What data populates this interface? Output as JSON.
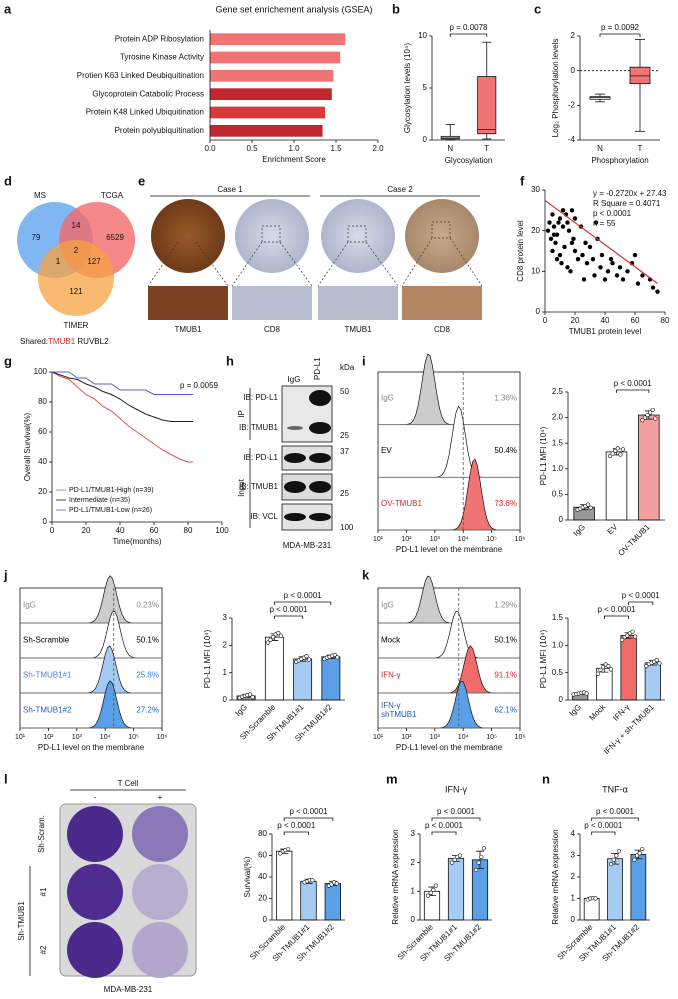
{
  "panel_letters": [
    "a",
    "b",
    "c",
    "d",
    "e",
    "f",
    "g",
    "h",
    "i",
    "j",
    "k",
    "l",
    "m",
    "n"
  ],
  "chart_data": [
    {
      "type": "bar",
      "horizontal": true,
      "title": "Gene set enrichement analysis (GSEA)",
      "categories": [
        "Protein ADP Ribosylation",
        "Tyrosine Kinase Activity",
        "Protien K63 Linked Deubiquitination",
        "Glycoprotein Catabolic Process",
        "Protein K48 Linked Ubiquitination",
        "Protein polyubiquitination"
      ],
      "values": [
        1.61,
        1.55,
        1.47,
        1.45,
        1.37,
        1.34
      ],
      "colors": [
        "#f07474",
        "#f07474",
        "#f07474",
        "#c1272d",
        "#d83a3a",
        "#c1272d"
      ],
      "xlim": [
        0,
        2
      ],
      "xticks": [
        {
          "value": 0,
          "label": "0.0"
        },
        0.5,
        {
          "value": 1,
          "label": "1.0"
        },
        1.5,
        {
          "value": 2,
          "label": "2.0"
        }
      ],
      "xlabel": "Enrichment Score"
    },
    {
      "type": "box",
      "categories": [
        "N",
        "T"
      ],
      "boxes": [
        {
          "min": 0,
          "q1": 0.1,
          "median": 0.2,
          "q3": 0.35,
          "max": 1.5
        },
        {
          "min": 0.1,
          "q1": 0.6,
          "median": 1.0,
          "q3": 6.1,
          "max": 9.4
        }
      ],
      "colors": [
        "#ffffff",
        "#f07474"
      ],
      "ylim": [
        0,
        10
      ],
      "yticks": [
        0,
        5,
        10
      ],
      "ylabel": "Glycosylation levels (10⁴)",
      "xlabel": "Glycosylation",
      "comparisons": [
        {
          "between": [
            "N",
            "T"
          ],
          "label": "p = 0.0078"
        }
      ]
    },
    {
      "type": "box",
      "categories": [
        "N",
        "T"
      ],
      "boxes": [
        {
          "min": -1.8,
          "q1": -1.65,
          "median": -1.55,
          "q3": -1.5,
          "max": -1.35
        },
        {
          "min": -3.5,
          "q1": -0.75,
          "median": -0.3,
          "q3": 0.2,
          "max": 1.8
        }
      ],
      "colors": [
        "#ffffff",
        "#f07474"
      ],
      "ylim": [
        -4,
        2
      ],
      "yticks": [
        -4,
        -2,
        0,
        2
      ],
      "hline": 0,
      "ylabel": "Log₂ Phosphorylation levels",
      "xlabel": "Phosphorylation",
      "comparisons": [
        {
          "between": [
            "N",
            "T"
          ],
          "label": "p = 0.0092"
        }
      ]
    },
    {
      "type": "scatter",
      "x": [
        2,
        3,
        4,
        5,
        5,
        6,
        7,
        8,
        8,
        9,
        10,
        10,
        11,
        12,
        13,
        14,
        15,
        15,
        16,
        17,
        18,
        19,
        20,
        20,
        22,
        24,
        25,
        27,
        28,
        30,
        32,
        33,
        35,
        37,
        38,
        40,
        42,
        44,
        45,
        48,
        50,
        52,
        55,
        58,
        60,
        62,
        65,
        70,
        72,
        75,
        6,
        12,
        18,
        26,
        34
      ],
      "values": [
        20,
        22,
        18,
        15,
        24,
        21,
        17,
        19,
        13,
        22,
        14,
        23,
        12,
        21,
        16,
        24,
        22,
        11,
        20,
        10,
        25,
        18,
        23,
        15,
        13,
        21,
        14,
        17,
        12,
        16,
        13,
        9,
        18,
        11,
        14,
        8,
        10,
        13,
        12,
        9,
        11,
        8,
        10,
        12,
        14,
        7,
        9,
        8,
        6,
        5,
        19,
        25,
        17,
        8,
        22
      ],
      "color": "#000000",
      "fit": {
        "x": [
          0,
          75
        ],
        "y": [
          27.43,
          7.03
        ],
        "color": "#e02b2b"
      },
      "annotations": [
        "y = -0.2720x + 27.43",
        "R Square = 0.4071",
        "p < 0.0001",
        "n = 55"
      ],
      "xlim": [
        0,
        80
      ],
      "xticks": [
        0,
        20,
        40,
        60,
        80
      ],
      "ylim": [
        0,
        30
      ],
      "yticks": [
        0,
        10,
        20,
        30
      ],
      "xlabel": "TMUB1 protein level",
      "ylabel": "CD8 protein level"
    },
    {
      "type": "line",
      "series": [
        {
          "name": "PD-L1/TMUB1-High (n=39)",
          "color": "#e8534f",
          "x": [
            0,
            5,
            10,
            15,
            20,
            25,
            30,
            35,
            40,
            45,
            50,
            55,
            60,
            65,
            70,
            75,
            80,
            83
          ],
          "values": [
            100,
            97,
            95,
            90,
            85,
            82,
            77,
            74,
            69,
            64,
            60,
            56,
            52,
            48,
            45,
            42,
            40,
            40
          ]
        },
        {
          "name": "Intermediate (n=35)",
          "color": "#222222",
          "x": [
            0,
            5,
            10,
            15,
            20,
            25,
            30,
            35,
            40,
            45,
            50,
            55,
            60,
            65,
            70,
            75,
            80,
            83
          ],
          "values": [
            100,
            98,
            96,
            95,
            92,
            90,
            87,
            85,
            82,
            78,
            75,
            72,
            70,
            68,
            67,
            67,
            67,
            67
          ]
        },
        {
          "name": "PD-L1/TMUB1-Low (n=26)",
          "color": "#5b5bd6",
          "x": [
            0,
            5,
            10,
            15,
            20,
            25,
            30,
            35,
            40,
            45,
            50,
            55,
            60,
            65,
            70,
            75,
            80,
            83
          ],
          "values": [
            100,
            100,
            100,
            96,
            96,
            92,
            92,
            92,
            88,
            88,
            88,
            88,
            85,
            85,
            85,
            85,
            85,
            85
          ]
        }
      ],
      "annotations": [
        "p = 0.0059"
      ],
      "xlim": [
        0,
        100
      ],
      "xticks": [
        0,
        20,
        40,
        60,
        80,
        100
      ],
      "ylim": [
        0,
        100
      ],
      "yticks": [
        0,
        20,
        40,
        60,
        80,
        100
      ],
      "xlabel": "Time(months)",
      "ylabel": "Overall Survival(%)"
    },
    {
      "type": "bar",
      "categories": [
        "IgG",
        "EV",
        "OV-TMUB1"
      ],
      "values": [
        0.25,
        1.33,
        2.05
      ],
      "errors": [
        0.05,
        0.06,
        0.08
      ],
      "points": [
        [
          0.2,
          0.22,
          0.25,
          0.27,
          0.3,
          0.24
        ],
        [
          1.25,
          1.3,
          1.35,
          1.4,
          1.28,
          1.38
        ],
        [
          1.95,
          2.0,
          2.05,
          2.1,
          2.15,
          1.98
        ]
      ],
      "colors": [
        "#999999",
        "#ffffff",
        "#f4a0a0"
      ],
      "ylim": [
        0,
        2.5
      ],
      "yticks": [
        0,
        0.5,
        {
          "value": 1,
          "label": "1.0"
        },
        1.5,
        {
          "value": 2,
          "label": "2.0"
        },
        2.5
      ],
      "ylabel": "PD-L1 MFI (10⁴)",
      "comparisons": [
        {
          "between": [
            "EV",
            "OV-TMUB1"
          ],
          "label": "p < 0.0001"
        }
      ]
    },
    {
      "type": "bar",
      "categories": [
        "IgG",
        "Sh-Scramble",
        "Sh-TMUB1#1",
        "Sh-TMUB1#2"
      ],
      "values": [
        0.15,
        2.3,
        1.5,
        1.58
      ],
      "errors": [
        0.05,
        0.12,
        0.08,
        0.06
      ],
      "points": [
        [
          0.08,
          0.12,
          0.15,
          0.18,
          0.2,
          0.1
        ],
        [
          2.1,
          2.2,
          2.3,
          2.4,
          2.45,
          2.35
        ],
        [
          1.4,
          1.45,
          1.5,
          1.55,
          1.6,
          1.48
        ],
        [
          1.5,
          1.55,
          1.58,
          1.62,
          1.65,
          1.56
        ]
      ],
      "colors": [
        "#999999",
        "#ffffff",
        "#a6cbf2",
        "#5aa0e8"
      ],
      "ylim": [
        0,
        3
      ],
      "yticks": [
        0,
        1,
        2,
        3
      ],
      "ylabel": "PD-L1 MFI (10⁴)",
      "comparisons": [
        {
          "between": [
            "Sh-Scramble",
            "Sh-TMUB1#1"
          ],
          "label": "p < 0.0001"
        },
        {
          "between": [
            "Sh-Scramble",
            "Sh-TMUB1#2"
          ],
          "label": "p < 0.0001"
        }
      ]
    },
    {
      "type": "bar",
      "categories": [
        "IgG",
        "Mock",
        "IFN-γ",
        "IFN-γ + sh-TMUB1"
      ],
      "values": [
        0.12,
        0.58,
        1.18,
        0.68
      ],
      "errors": [
        0.02,
        0.07,
        0.05,
        0.04
      ],
      "points": [
        [
          0.1,
          0.11,
          0.12,
          0.13,
          0.14,
          0.12
        ],
        [
          0.48,
          0.55,
          0.6,
          0.65,
          0.62,
          0.56
        ],
        [
          1.1,
          1.15,
          1.18,
          1.22,
          1.25,
          1.16
        ],
        [
          0.62,
          0.66,
          0.68,
          0.7,
          0.73,
          0.67
        ]
      ],
      "colors": [
        "#999999",
        "#ffffff",
        "#f26b6b",
        "#a6cbf2"
      ],
      "ylim": [
        0,
        1.5
      ],
      "yticks": [
        0,
        0.5,
        {
          "value": 1,
          "label": "1.0"
        },
        1.5
      ],
      "ylabel": "PD-L1 MFI (10⁴)",
      "comparisons": [
        {
          "between": [
            "Mock",
            "IFN-γ"
          ],
          "label": "p < 0.0001"
        },
        {
          "between": [
            "IFN-γ",
            "IFN-γ + sh-TMUB1"
          ],
          "label": "p < 0.0001"
        }
      ]
    },
    {
      "type": "bar",
      "categories": [
        "Sh-Scramble",
        "Sh-TMUB1#1",
        "Sh-TMUB1#2"
      ],
      "values": [
        64,
        36,
        34
      ],
      "errors": [
        2,
        2,
        2
      ],
      "points": [
        [
          62,
          64,
          65,
          66
        ],
        [
          35,
          36,
          37,
          37
        ],
        [
          32,
          33,
          35,
          34
        ]
      ],
      "colors": [
        "#ffffff",
        "#a6cbf2",
        "#5aa0e8"
      ],
      "ylim": [
        0,
        80
      ],
      "yticks": [
        0,
        20,
        40,
        60,
        80
      ],
      "ylabel": "Survival(%)",
      "comparisons": [
        {
          "between": [
            "Sh-Scramble",
            "Sh-TMUB1#1"
          ],
          "label": "p < 0.0001"
        },
        {
          "between": [
            "Sh-Scramble",
            "Sh-TMUB1#2"
          ],
          "label": "p < 0.0001"
        }
      ]
    },
    {
      "type": "bar",
      "title": "IFN-γ",
      "categories": [
        "Sh-Scramble",
        "Sh-TMUB1#1",
        "Sh-TMUB1#2"
      ],
      "values": [
        1.0,
        2.15,
        2.1
      ],
      "errors": [
        0.15,
        0.1,
        0.3
      ],
      "points": [
        [
          0.85,
          0.95,
          1.05,
          1.2
        ],
        [
          2.0,
          2.1,
          2.2,
          2.25
        ],
        [
          1.75,
          2.0,
          2.2,
          2.5
        ]
      ],
      "colors": [
        "#ffffff",
        "#a6cbf2",
        "#5aa0e8"
      ],
      "ylim": [
        0,
        3
      ],
      "yticks": [
        0,
        1,
        2,
        3
      ],
      "ylabel": "Relative mRNA expression",
      "comparisons": [
        {
          "between": [
            "Sh-Scramble",
            "Sh-TMUB1#1"
          ],
          "label": "p < 0.0001"
        },
        {
          "between": [
            "Sh-Scramble",
            "Sh-TMUB1#2"
          ],
          "label": "p < 0.0001"
        }
      ]
    },
    {
      "type": "bar",
      "title": "TNF-α",
      "categories": [
        "Sh-Scramble",
        "Sh-TMUB1#1",
        "Sh-TMUB1#2"
      ],
      "values": [
        1.0,
        2.85,
        3.05
      ],
      "errors": [
        0.05,
        0.25,
        0.2
      ],
      "points": [
        [
          0.95,
          1.0,
          1.02,
          1.0
        ],
        [
          2.6,
          2.8,
          3.0,
          3.2
        ],
        [
          2.8,
          3.0,
          3.1,
          3.3
        ]
      ],
      "colors": [
        "#ffffff",
        "#a6cbf2",
        "#5aa0e8"
      ],
      "ylim": [
        0,
        4
      ],
      "yticks": [
        0,
        1,
        2,
        3,
        4
      ],
      "ylabel": "Relative mRNA expression",
      "comparisons": [
        {
          "between": [
            "Sh-Scramble",
            "Sh-TMUB1#1"
          ],
          "label": "p < 0.0001"
        },
        {
          "between": [
            "Sh-Scramble",
            "Sh-TMUB1#2"
          ],
          "label": "p < 0.0001"
        }
      ]
    }
  ],
  "flow": [
    {
      "samples": [
        {
          "name": "IgG",
          "pct": "1.36%",
          "color": "#cccccc",
          "label_color": "#888888",
          "peak": 600
        },
        {
          "name": "EV",
          "pct": "50.4%",
          "color": "#ffffff",
          "label_color": "#000000",
          "peak": 7000
        },
        {
          "name": "OV-TMUB1",
          "pct": "73.6%",
          "color": "#f07474",
          "label_color": "#d62828",
          "peak": 25000
        }
      ],
      "gate": 10000,
      "xticks": [
        {
          "value": 10,
          "label": "10¹"
        },
        {
          "value": 100,
          "label": "10²"
        },
        {
          "value": 1000,
          "label": "10³"
        },
        {
          "value": 10000,
          "label": "10⁴"
        },
        {
          "value": 100000,
          "label": "10⁵"
        },
        {
          "value": 1000000,
          "label": "10⁶"
        }
      ],
      "xlabel": "PD-L1 level on the membrane"
    },
    {
      "samples": [
        {
          "name": "IgG",
          "pct": "0.23%",
          "color": "#cccccc",
          "label_color": "#888888",
          "peak": 15000
        },
        {
          "name": "Sh-Scramble",
          "pct": "50.1%",
          "color": "#ffffff",
          "label_color": "#000000",
          "peak": 20000
        },
        {
          "name": "Sh-TMUB1#1",
          "pct": "25.8%",
          "color": "#a6cbf2",
          "label_color": "#3f86d8",
          "peak": 14000
        },
        {
          "name": "Sh-TMUB1#2",
          "pct": "27.2%",
          "color": "#5aa0e8",
          "label_color": "#1f5fae",
          "peak": 15000
        }
      ],
      "gate": 20000,
      "xticks": [
        {
          "value": 10,
          "label": "10¹"
        },
        {
          "value": 100,
          "label": "10²"
        },
        {
          "value": 1000,
          "label": "10³"
        },
        {
          "value": 10000,
          "label": "10⁴"
        },
        {
          "value": 100000,
          "label": "10⁵"
        },
        {
          "value": 1000000,
          "label": "10⁶"
        }
      ],
      "xlabel": "PD-L1 level on the membrane"
    },
    {
      "samples": [
        {
          "name": "IgG",
          "pct": "1.29%",
          "color": "#cccccc",
          "label_color": "#888888",
          "peak": 600
        },
        {
          "name": "Mock",
          "pct": "50.1%",
          "color": "#ffffff",
          "label_color": "#000000",
          "peak": 6000
        },
        {
          "name": "IFN-γ",
          "pct": "91.1%",
          "color": "#f26b6b",
          "label_color": "#d62828",
          "peak": 18000
        },
        {
          "name": [
            "IFN-γ",
            "shTMUB1"
          ],
          "pct": "62.1%",
          "color": "#5aa0e8",
          "label_color": "#1f5fae",
          "peak": 9000
        }
      ],
      "gate": 7000,
      "xticks": [
        {
          "value": 10,
          "label": "10¹"
        },
        {
          "value": 100,
          "label": "10²"
        },
        {
          "value": 1000,
          "label": "10³"
        },
        {
          "value": 10000,
          "label": "10⁴"
        },
        {
          "value": 100000,
          "label": "10⁵"
        },
        {
          "value": 1000000,
          "label": "10⁶"
        }
      ],
      "xlabel": "PD-L1 level on the membrane"
    }
  ],
  "venn": {
    "sets": [
      "MS",
      "TCGA",
      "TIMER"
    ],
    "counts": [
      79,
      14,
      6529,
      1,
      2,
      127,
      121
    ],
    "shared_label": "Shared:",
    "shared_genes": [
      "TMUB1",
      "RUVBL2"
    ]
  },
  "ihc": {
    "cases": [
      "Case 1",
      "Case 2"
    ],
    "stains": [
      "TMUB1",
      "CD8",
      "TMUB1",
      "CD8"
    ]
  },
  "blot": {
    "lanes": [
      "IgG",
      "PD-L1"
    ],
    "unit": "kDa",
    "groups": [
      "IP",
      "Input"
    ],
    "rows": [
      "IB: PD-L1",
      "IB: TMUB1",
      "IB: PD-L1",
      "IB: TMUB1",
      "IB: VCL"
    ],
    "markers": [
      50,
      25,
      37,
      25,
      100
    ],
    "cell_line": "MDA-MB-231"
  },
  "wells": {
    "header": "T Cell",
    "conditions": [
      "-",
      "+"
    ],
    "rows": [
      "Sh-Scram.",
      "Sh-TMUB1"
    ],
    "clones": [
      "#1",
      "#2"
    ],
    "cell_line": "MDA-MB-231"
  }
}
